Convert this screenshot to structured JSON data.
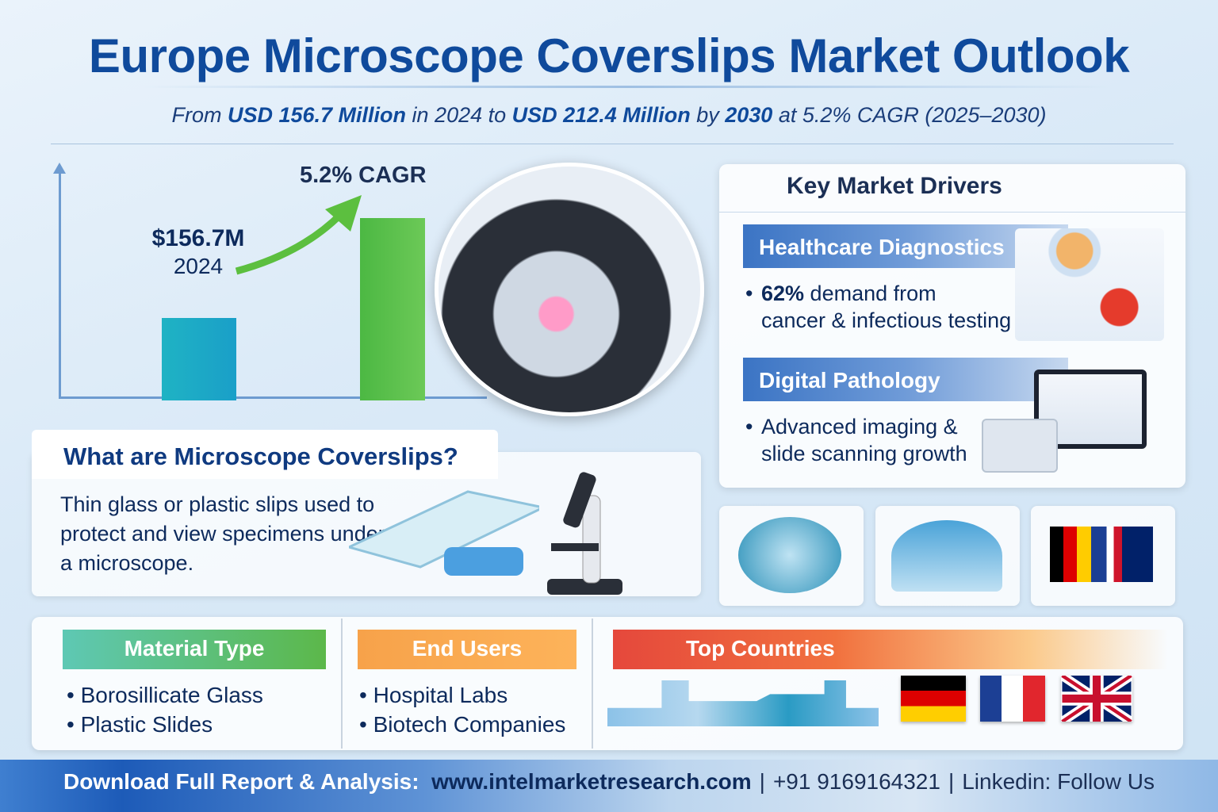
{
  "header": {
    "title": "Europe Microscope Coverslips Market Outlook",
    "subtitle": {
      "p1": "From ",
      "v1": "USD 156.7 Million",
      "p2": " in 2024 to ",
      "v2": "USD 212.4 Million",
      "p3": " by ",
      "y2": "2030",
      "p4": " at 5.2% CAGR (2025–2030)"
    }
  },
  "growth": {
    "start_value_label": "$156.7M",
    "start_year": "2024",
    "cagr_label": "5.2% CAGR",
    "bar_values_usd_million": [
      156.7,
      212.4
    ],
    "colors": {
      "bar_2024": "#1fb3c4",
      "bar_2030": "#4cb843",
      "arrow": "#5cbf3f"
    }
  },
  "what": {
    "title": "What are Microscope Coverslips?",
    "body": "Thin glass or plastic slips used to protect and view specimens under a microscope."
  },
  "drivers": {
    "title": "Key Market Drivers",
    "items": [
      {
        "heading": "Healthcare Diagnostics",
        "bullet_strong": "62%",
        "bullet_rest": " demand from",
        "bullet_line2": "cancer & infectious testing",
        "icon": "microscope-virus-icon"
      },
      {
        "heading": "Digital Pathology",
        "bullet_line1": "Advanced imaging &",
        "bullet_line2": "slide scanning growth",
        "icon": "monitor-chart-icon"
      }
    ]
  },
  "tiles": [
    {
      "icon": "hospital-building-icon"
    },
    {
      "icon": "lab-building-icon"
    },
    {
      "icon": "europe-flags-icon"
    }
  ],
  "segments": {
    "material": {
      "title": "Material Type",
      "items": [
        "Borosillicate Glass",
        "Plastic Slides"
      ]
    },
    "end_users": {
      "title": "End Users",
      "items": [
        "Hospital Labs",
        "Biotech Companies"
      ]
    },
    "countries": {
      "title": "Top Countries",
      "flags": [
        "germany-flag",
        "france-flag",
        "uk-flag"
      ]
    }
  },
  "footer": {
    "download": "Download Full Report & Analysis:",
    "url": "www.intelmarketresearch.com",
    "phone": "+91 9169164321",
    "linkedin": "Linkedin: Follow Us",
    "sep": "|"
  }
}
